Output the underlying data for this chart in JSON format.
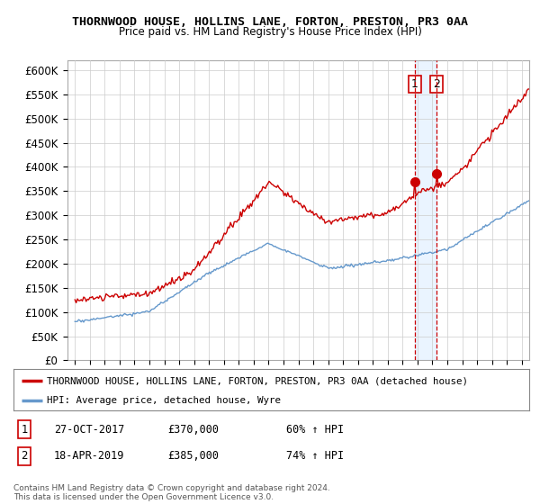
{
  "title": "THORNWOOD HOUSE, HOLLINS LANE, FORTON, PRESTON, PR3 0AA",
  "subtitle": "Price paid vs. HM Land Registry's House Price Index (HPI)",
  "legend_line1": "THORNWOOD HOUSE, HOLLINS LANE, FORTON, PRESTON, PR3 0AA (detached house)",
  "legend_line2": "HPI: Average price, detached house, Wyre",
  "transaction1_date": "27-OCT-2017",
  "transaction1_price": "£370,000",
  "transaction1_hpi": "60% ↑ HPI",
  "transaction2_date": "18-APR-2019",
  "transaction2_price": "£385,000",
  "transaction2_hpi": "74% ↑ HPI",
  "footer": "Contains HM Land Registry data © Crown copyright and database right 2024.\nThis data is licensed under the Open Government Licence v3.0.",
  "hpi_color": "#6699cc",
  "price_color": "#cc0000",
  "marker1_date": 2017.83,
  "marker1_price": 370000,
  "marker2_date": 2019.3,
  "marker2_price": 385000,
  "ylim_min": 0,
  "ylim_max": 620000,
  "xlim_min": 1994.5,
  "xlim_max": 2025.5,
  "background_color": "#ffffff",
  "grid_color": "#cccccc",
  "shade_color": "#ddeeff",
  "vline_color": "#cc0000"
}
